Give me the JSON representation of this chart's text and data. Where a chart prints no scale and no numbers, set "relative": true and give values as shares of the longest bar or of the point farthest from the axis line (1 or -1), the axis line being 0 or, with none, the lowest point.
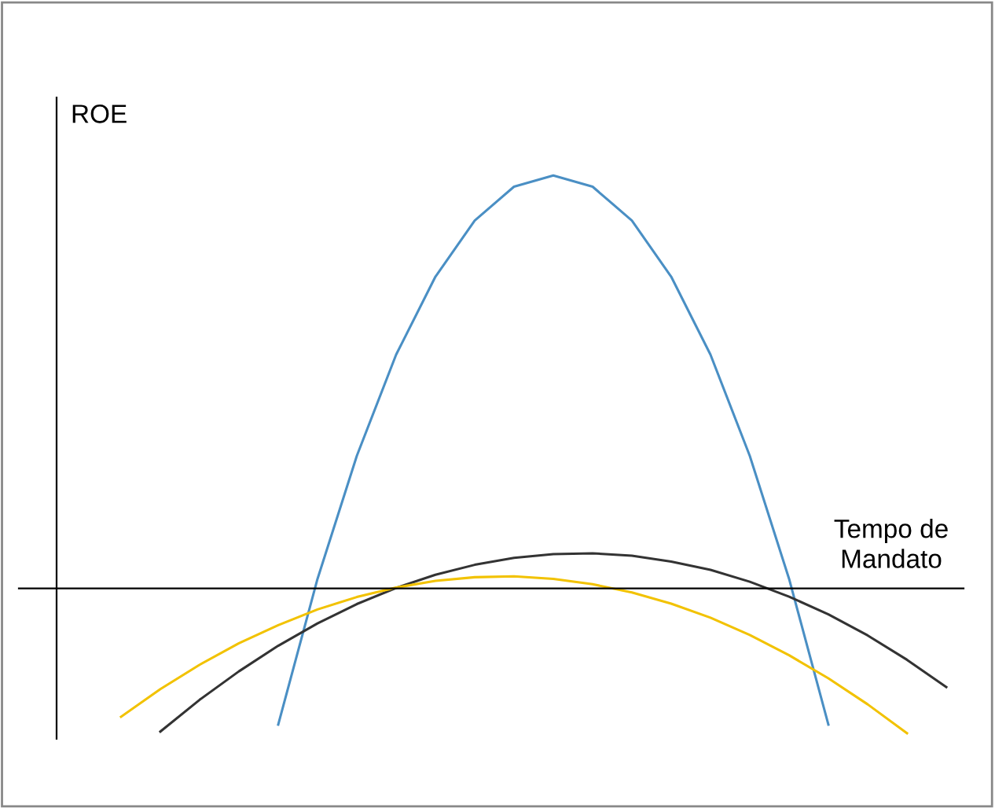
{
  "chart_data": {
    "type": "line",
    "relative": true,
    "ylabel": "ROE",
    "xlabel": "Tempo de\nMandato",
    "legend": false,
    "marker": "none",
    "line_style": "solid",
    "categories": [
      null,
      null,
      null,
      null,
      null,
      null,
      null,
      null,
      null,
      null,
      null,
      null,
      null,
      null,
      null,
      null,
      null,
      null,
      null,
      null,
      null,
      null,
      null,
      null
    ],
    "series": [
      {
        "color": "#4a8fc4",
        "values": [
          null,
          null,
          null,
          null,
          null,
          null,
          -0.33,
          0.023,
          0.321,
          0.566,
          0.755,
          0.891,
          0.973,
          1,
          0.973,
          0.891,
          0.755,
          0.566,
          0.321,
          0.023,
          -0.33,
          null,
          null,
          null
        ]
      },
      {
        "color": "#333333",
        "values": [
          null,
          null,
          null,
          -0.347,
          -0.27,
          -0.201,
          -0.139,
          -0.085,
          -0.038,
          0.001,
          0.033,
          0.057,
          0.074,
          0.083,
          0.085,
          0.079,
          0.065,
          0.045,
          0.016,
          -0.02,
          -0.063,
          -0.114,
          -0.173,
          -0.239
        ]
      },
      {
        "color": "#f2c200",
        "values": [
          null,
          null,
          -0.311,
          -0.244,
          -0.185,
          -0.133,
          -0.089,
          -0.051,
          -0.021,
          0.002,
          0.018,
          0.027,
          0.029,
          0.023,
          0.01,
          -0.01,
          -0.037,
          -0.071,
          -0.113,
          -0.162,
          -0.218,
          -0.281,
          -0.351,
          null
        ]
      }
    ]
  }
}
